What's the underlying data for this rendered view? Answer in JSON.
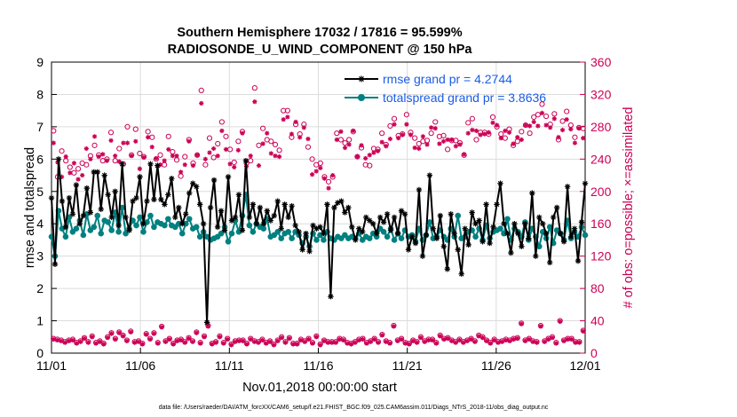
{
  "chart_data": {
    "type": "line",
    "title_line1": "Southern Hemisphere 17032 / 17816 = 95.599%",
    "title_line2": "RADIOSONDE_U_WIND_COMPONENT @ 150 hPa",
    "xlabel": "Nov.01,2018 00:00:00 start",
    "ylabel_left": "rmse and totalspread",
    "ylabel_right": "# of obs: o=possible; ×=assimilated",
    "x_ticks": [
      "11/01",
      "11/06",
      "11/11",
      "11/16",
      "11/21",
      "11/26",
      "12/01"
    ],
    "y_left_ticks": [
      "0",
      "1",
      "2",
      "3",
      "4",
      "5",
      "6",
      "7",
      "8",
      "9"
    ],
    "y_right_ticks": [
      "0",
      "40",
      "80",
      "120",
      "160",
      "200",
      "240",
      "280",
      "320",
      "360"
    ],
    "xlim": [
      0,
      30
    ],
    "ylim_left": [
      0,
      9
    ],
    "ylim_right": [
      0,
      360
    ],
    "colors": {
      "rmse": "#000000",
      "spread": "#008080",
      "obs": "#cc0055",
      "right_axis": "#cc0055",
      "legend_text": "#1a5ce6"
    },
    "legend": [
      {
        "label": "rmse grand pr = 4.2744"
      },
      {
        "label": "totalspread grand pr = 3.8636"
      }
    ],
    "footnote": "data file: /Users/raeder/DAI/ATM_forcXX/CAM6_setup/f.e21.FHIST_BGC.f09_025.CAM6assim.011/Diags_NTrS_2018-11/obs_diag_output.nc",
    "series": [
      {
        "name": "rmse",
        "axis": "left",
        "values": [
          4.8,
          2.75,
          6.0,
          4.7,
          3.9,
          4.8,
          4.3,
          5.2,
          4.0,
          4.25,
          5.1,
          4.35,
          5.6,
          5.6,
          4.45,
          5.5,
          4.9,
          4.2,
          5.0,
          3.95,
          5.85,
          4.2,
          3.8,
          4.7,
          4.8,
          5.45,
          4.0,
          4.7,
          5.85,
          4.75,
          5.8,
          4.75,
          4.6,
          4.9,
          5.4,
          4.2,
          4.5,
          4.0,
          4.3,
          4.95,
          5.25,
          5.15,
          4.6,
          4.0,
          0.95,
          4.5,
          5.35,
          3.9,
          4.4,
          3.8,
          5.45,
          4.1,
          4.2,
          4.9,
          3.8,
          5.95,
          4.2,
          4.6,
          4.0,
          4.5,
          4.0,
          4.4,
          4.1,
          4.25,
          4.7,
          3.85,
          4.6,
          4.2,
          4.55,
          3.95,
          3.75,
          3.2,
          3.7,
          3.15,
          3.95,
          3.85,
          3.9,
          3.7,
          4.6,
          1.75,
          4.5,
          4.65,
          4.7,
          4.35,
          4.5,
          3.9,
          3.5,
          3.85,
          3.75,
          4.2,
          4.1,
          4.0,
          3.7,
          4.2,
          4.05,
          4.3,
          3.8,
          4.2,
          3.7,
          4.4,
          4.3,
          3.2,
          3.6,
          3.4,
          5.05,
          3.0,
          3.65,
          5.5,
          3.85,
          3.55,
          4.25,
          3.3,
          2.6,
          4.3,
          3.7,
          3.2,
          2.45,
          3.85,
          3.35,
          4.35,
          4.0,
          4.1,
          3.45,
          4.6,
          3.4,
          3.9,
          4.6,
          5.25,
          4.0,
          3.7,
          3.1,
          4.0,
          3.7,
          3.3,
          4.0,
          3.55,
          4.95,
          3.0,
          4.2,
          4.0,
          3.7,
          2.8,
          4.2,
          4.5,
          3.7,
          3.45,
          5.15,
          3.6,
          3.85,
          2.85,
          4.05,
          5.25
        ]
      },
      {
        "name": "totalspread",
        "axis": "left",
        "values": [
          3.6,
          3.0,
          4.4,
          3.85,
          3.6,
          4.2,
          3.75,
          3.85,
          4.1,
          3.65,
          4.3,
          3.8,
          3.9,
          4.25,
          3.7,
          4.1,
          4.05,
          3.8,
          4.35,
          3.75,
          4.5,
          3.7,
          3.85,
          4.1,
          3.95,
          4.2,
          3.75,
          4.05,
          4.25,
          3.9,
          4.05,
          4.0,
          3.95,
          4.15,
          3.95,
          3.9,
          4.0,
          3.7,
          4.0,
          4.15,
          3.85,
          3.9,
          3.6,
          3.75,
          3.6,
          3.5,
          3.55,
          3.6,
          3.7,
          3.9,
          3.45,
          3.7,
          4.1,
          3.75,
          4.25,
          4.9,
          3.95,
          3.75,
          4.0,
          3.9,
          3.85,
          4.15,
          3.6,
          3.65,
          3.75,
          3.55,
          3.7,
          3.75,
          3.55,
          3.75,
          3.65,
          3.4,
          3.6,
          3.3,
          3.7,
          3.5,
          3.65,
          3.5,
          3.75,
          3.55,
          3.5,
          3.6,
          3.55,
          3.65,
          3.55,
          3.6,
          3.55,
          3.7,
          3.5,
          3.6,
          3.55,
          3.7,
          3.6,
          3.85,
          3.75,
          3.6,
          3.85,
          3.5,
          3.7,
          3.55,
          3.8,
          3.6,
          3.65,
          3.45,
          3.85,
          3.5,
          3.65,
          4.05,
          3.55,
          3.6,
          3.8,
          3.6,
          3.5,
          3.85,
          3.6,
          4.25,
          3.55,
          3.6,
          3.75,
          3.8,
          3.6,
          3.85,
          3.5,
          3.95,
          3.55,
          3.75,
          3.8,
          3.85,
          3.7,
          4.15,
          3.5,
          3.85,
          3.75,
          3.6,
          4.05,
          3.5,
          3.85,
          3.6,
          3.3,
          3.75,
          3.55,
          3.9,
          3.4,
          3.8,
          3.7,
          3.5,
          4.1,
          3.55,
          3.75,
          3.6,
          3.9,
          3.65
        ]
      },
      {
        "name": "obs_possible",
        "axis": "right",
        "marker": "o",
        "values": [
          275,
          218,
          250,
          238,
          230,
          223,
          228,
          235,
          233,
          244,
          257,
          245,
          238,
          240,
          273,
          238,
          253,
          234,
          280,
          245,
          277,
          247,
          243,
          274,
          267,
          240,
          245,
          233,
          268,
          249,
          239,
          219,
          243,
          264,
          235,
          245,
          325,
          233,
          266,
          242,
          259,
          286,
          268,
          252,
          236,
          262,
          274,
          235,
          238,
          328,
          257,
          278,
          264,
          262,
          258,
          251,
          300,
          300,
          267,
          283,
          271,
          283,
          255,
          240,
          233,
          235,
          218,
          212,
          218,
          272,
          264,
          260,
          264,
          274,
          243,
          254,
          233,
          232,
          253,
          252,
          272,
          258,
          281,
          290,
          269,
          271,
          295,
          273,
          266,
          259,
          262,
          263,
          272,
          286,
          268,
          269,
          252,
          263,
          263,
          260,
          245,
          285,
          290,
          264,
          273,
          273,
          271,
          292,
          280,
          271,
          266,
          277,
          257,
          262,
          274,
          282,
          272,
          292,
          295,
          308,
          293,
          283,
          296,
          264,
          287,
          299,
          282,
          267,
          279,
          278
        ],
        "marker2": "x",
        "values2": [
          260,
          236,
          218,
          243,
          223,
          235,
          215,
          220,
          253,
          240,
          268,
          243,
          246,
          238,
          263,
          244,
          237,
          260,
          260,
          244,
          262,
          228,
          242,
          267,
          255,
          241,
          233,
          238,
          252,
          244,
          244,
          224,
          233,
          262,
          232,
          245,
          309,
          240,
          248,
          253,
          244,
          275,
          252,
          234,
          230,
          251,
          272,
          231,
          244,
          311,
          232,
          259,
          272,
          247,
          244,
          243,
          289,
          292,
          271,
          286,
          267,
          279,
          265,
          221,
          225,
          229,
          216,
          204,
          220,
          264,
          274,
          254,
          258,
          275,
          243,
          257,
          241,
          245,
          248,
          250,
          261,
          256,
          265,
          283,
          266,
          270,
          283,
          270,
          254,
          253,
          268,
          258,
          279,
          278,
          259,
          262,
          264,
          264,
          256,
          258,
          246,
          272,
          276,
          275,
          270,
          271,
          273,
          285,
          282,
          266,
          275,
          273,
          259,
          267,
          264,
          282,
          281,
          286,
          281,
          297,
          282,
          279,
          290,
          267,
          276,
          289,
          277,
          260,
          278,
          266
        ]
      },
      {
        "name": "obs_low_possible",
        "axis": "right",
        "marker": "o",
        "values": [
          18,
          17,
          16,
          14,
          16,
          17,
          13,
          15,
          19,
          14,
          21,
          13,
          15,
          12,
          20,
          25,
          18,
          26,
          22,
          16,
          27,
          14,
          15,
          12,
          24,
          18,
          25,
          13,
          33,
          15,
          18,
          12,
          16,
          17,
          14,
          19,
          15,
          26,
          13,
          21,
          34,
          12,
          14,
          21,
          13,
          18,
          11,
          15,
          16,
          16,
          12,
          18,
          15,
          14,
          17,
          13,
          15,
          11,
          16,
          20,
          14,
          19,
          12,
          12,
          17,
          15,
          18,
          13,
          21,
          11,
          16,
          14,
          14,
          14,
          18,
          17,
          13,
          12,
          14,
          17,
          18,
          13,
          15,
          18,
          14,
          23,
          15,
          13,
          34,
          16,
          18,
          13,
          12,
          16,
          14,
          20,
          15,
          17,
          17,
          13,
          22,
          18,
          19,
          16,
          14,
          17,
          14,
          16,
          18,
          15,
          22,
          20,
          16,
          13,
          17,
          14,
          15,
          17,
          16,
          18,
          19,
          37,
          16,
          18,
          15,
          14,
          34,
          15,
          18,
          20,
          13,
          40,
          16,
          18,
          18,
          14,
          14,
          28
        ],
        "values2": [
          17,
          16,
          15,
          13,
          15,
          16,
          12,
          14,
          18,
          13,
          20,
          12,
          14,
          11,
          19,
          24,
          17,
          25,
          21,
          15,
          26,
          13,
          14,
          11,
          23,
          17,
          24,
          12,
          32,
          14,
          17,
          11,
          15,
          16,
          13,
          18,
          14,
          25,
          12,
          20,
          33,
          11,
          13,
          20,
          12,
          17,
          10,
          14,
          15,
          15,
          11,
          17,
          14,
          13,
          16,
          12,
          14,
          10,
          15,
          19,
          13,
          18,
          11,
          11,
          16,
          14,
          17,
          12,
          20,
          10,
          15,
          13,
          13,
          13,
          17,
          16,
          12,
          11,
          13,
          16,
          17,
          12,
          14,
          17,
          13,
          22,
          14,
          12,
          33,
          15,
          17,
          12,
          11,
          15,
          13,
          19,
          14,
          16,
          16,
          12,
          21,
          17,
          18,
          15,
          13,
          16,
          13,
          15,
          17,
          14,
          21,
          19,
          15,
          12,
          16,
          13,
          14,
          16,
          15,
          17,
          18,
          36,
          15,
          17,
          14,
          13,
          33,
          14,
          17,
          19,
          12,
          39,
          15,
          17,
          17,
          13,
          13,
          27
        ]
      }
    ]
  }
}
